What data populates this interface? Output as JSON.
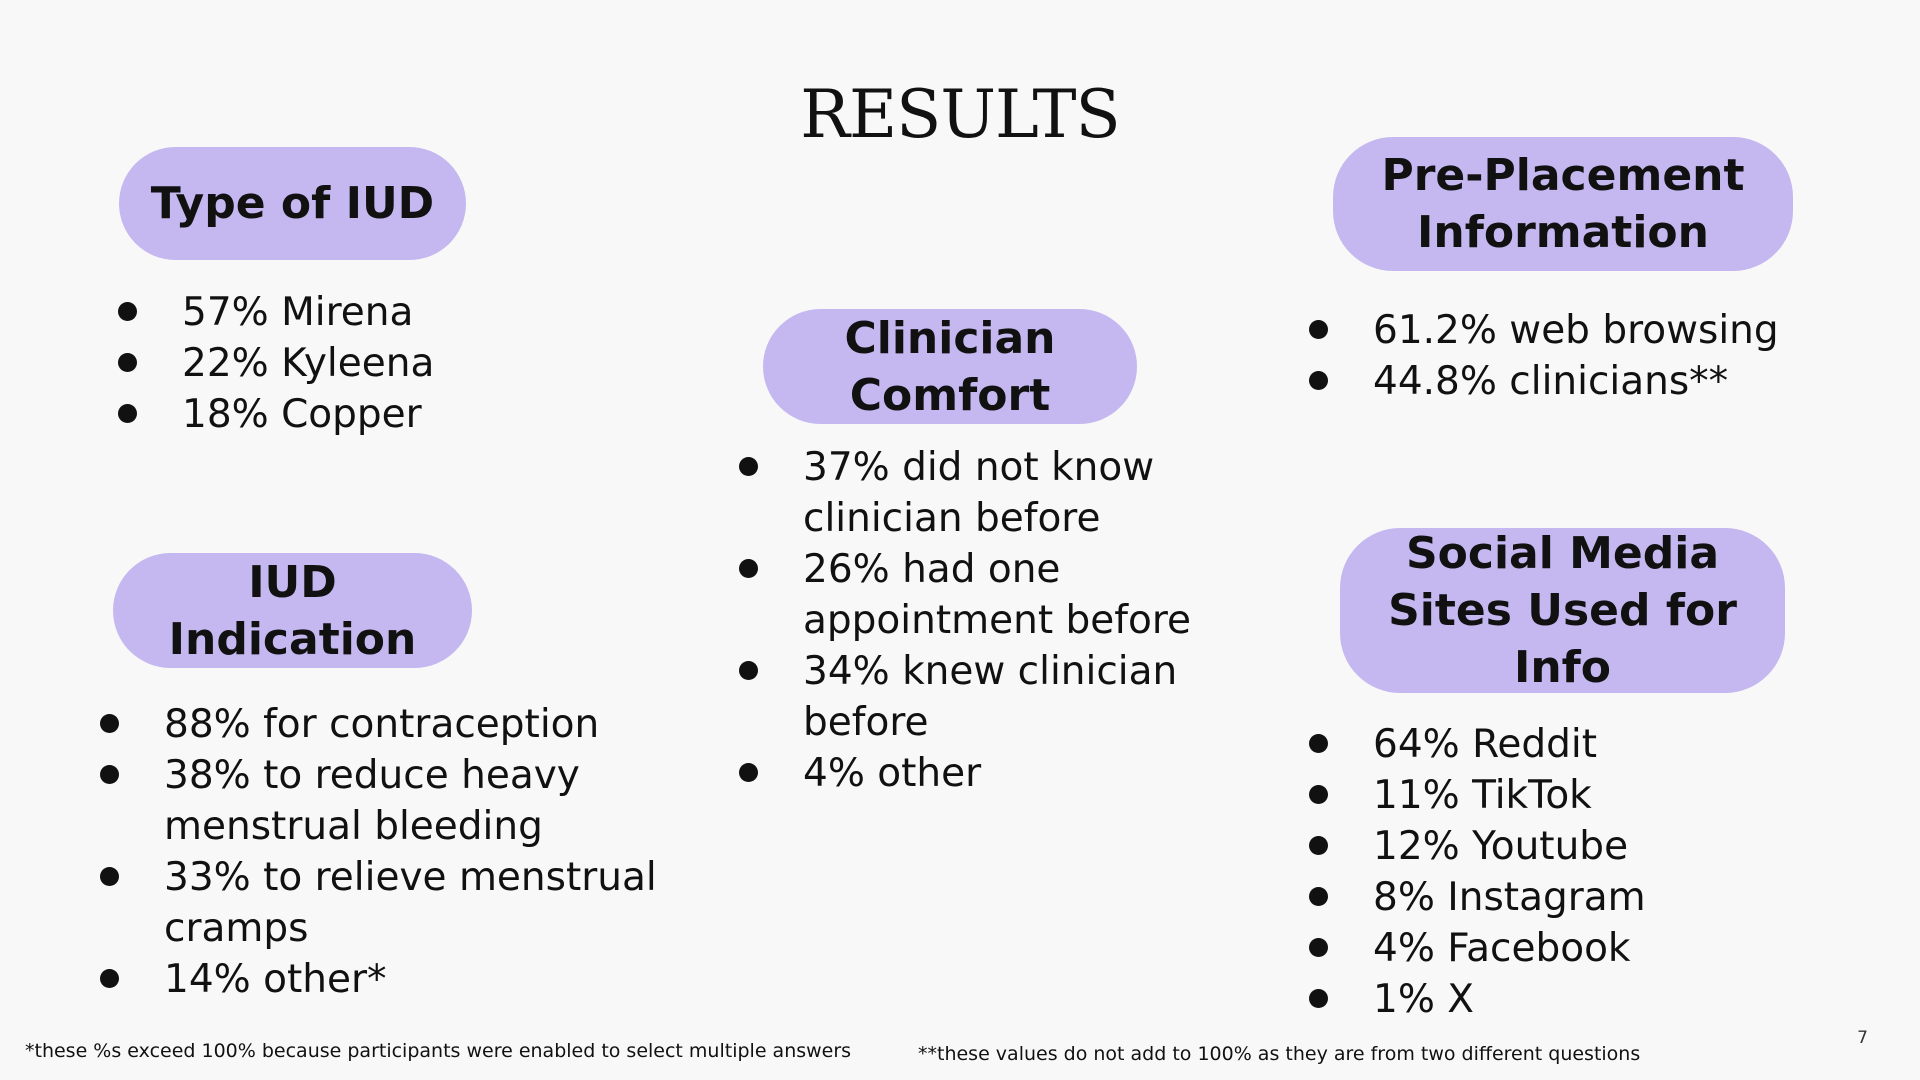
{
  "title": "RESULTS",
  "sections": {
    "type_of_iud": {
      "heading": "Type of IUD",
      "items": [
        "57% Mirena",
        "22% Kyleena",
        "18% Copper"
      ]
    },
    "iud_indication": {
      "heading_line1": "IUD",
      "heading_line2": "Indication",
      "items": [
        "88% for contraception",
        "38% to reduce heavy menstrual bleeding",
        "33% to relieve menstrual cramps",
        "14% other*"
      ]
    },
    "clinician_comfort": {
      "heading_line1": "Clinician",
      "heading_line2": "Comfort",
      "items": [
        "37% did not know clinician before",
        "26% had one appointment before",
        "34% knew clinician before",
        "4% other"
      ]
    },
    "pre_placement": {
      "heading_line1": "Pre-Placement",
      "heading_line2": "Information",
      "items": [
        "61.2% web browsing",
        "44.8% clinicians**"
      ]
    },
    "social_media": {
      "heading_line1": "Social Media",
      "heading_line2": "Sites Used for",
      "heading_line3": "Info",
      "items": [
        "64% Reddit",
        "11% TikTok",
        "12% Youtube",
        "8% Instagram",
        "4% Facebook",
        "1% X"
      ]
    }
  },
  "footnotes": {
    "single_star": "*these %s exceed 100% because participants were enabled to select multiple answers",
    "double_star": "**these values do not add to 100% as they are from two different questions"
  },
  "page_number": "7",
  "colors": {
    "pill_background": "#c5b8f0",
    "slide_background": "#f8f8f8",
    "text": "#111111"
  }
}
